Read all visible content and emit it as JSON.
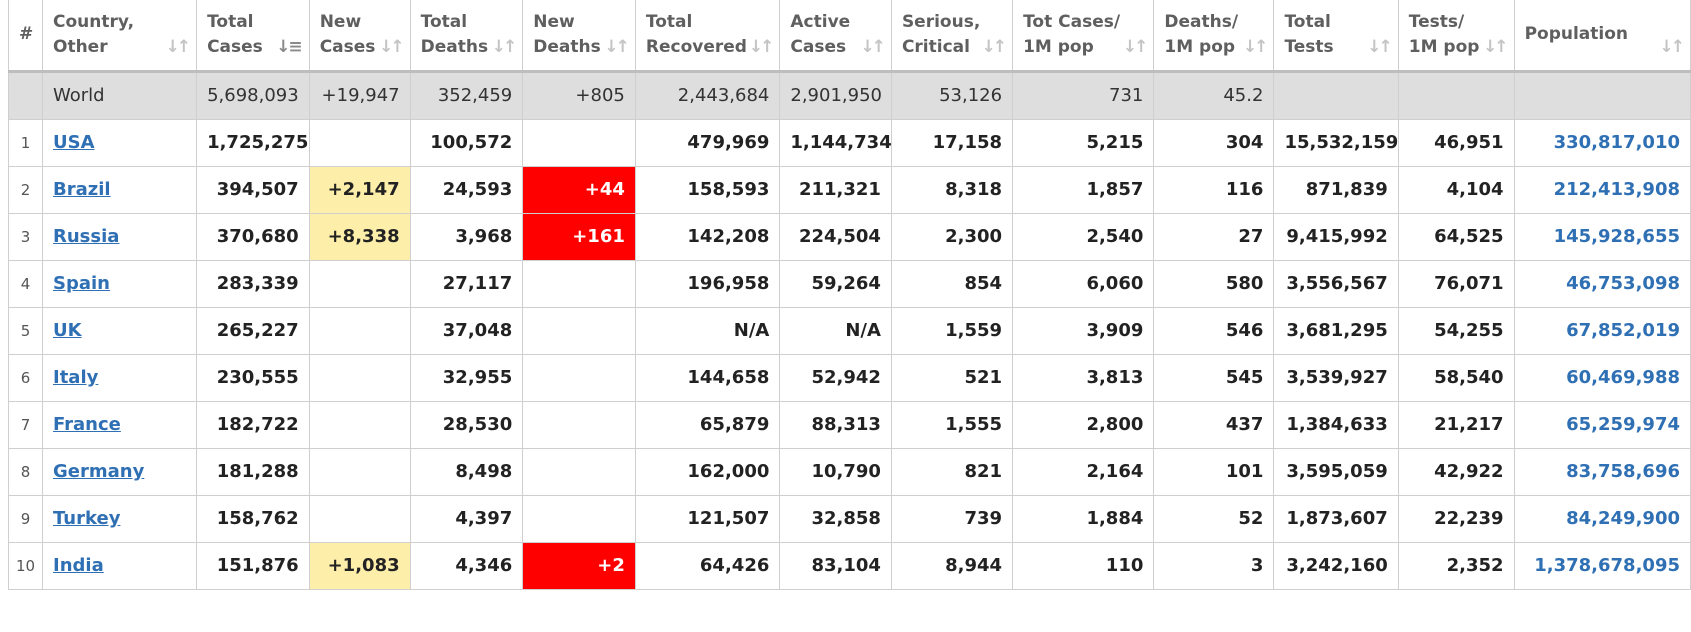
{
  "headers": {
    "rank": "#",
    "country": [
      "Country,",
      "Other"
    ],
    "total_cases": [
      "Total",
      "Cases"
    ],
    "new_cases": [
      "New",
      "Cases"
    ],
    "total_deaths": [
      "Total",
      "Deaths"
    ],
    "new_deaths": [
      "New",
      "Deaths"
    ],
    "total_recovered": [
      "Total",
      "Recovered"
    ],
    "active_cases": [
      "Active",
      "Cases"
    ],
    "serious_critical": [
      "Serious,",
      "Critical"
    ],
    "tot_cases_1m": [
      "Tot Cases/",
      "1M pop"
    ],
    "deaths_1m": [
      "Deaths/",
      "1M pop"
    ],
    "total_tests": [
      "Total",
      "Tests"
    ],
    "tests_1m": [
      "Tests/",
      "1M pop"
    ],
    "population": "Population"
  },
  "sort": {
    "column": "total_cases",
    "direction": "descending"
  },
  "colors": {
    "new_cases_highlight": "#fdeeaa",
    "new_deaths_highlight": "#ff0000",
    "world_row_bg": "#dedede",
    "link": "#2f6fb3"
  },
  "world": {
    "country": "World",
    "total_cases": "5,698,093",
    "new_cases": "+19,947",
    "total_deaths": "352,459",
    "new_deaths": "+805",
    "total_recovered": "2,443,684",
    "active_cases": "2,901,950",
    "serious_critical": "53,126",
    "tot_cases_1m": "731",
    "deaths_1m": "45.2",
    "total_tests": "",
    "tests_1m": "",
    "population": ""
  },
  "rows": [
    {
      "rank": "1",
      "country": "USA",
      "total_cases": "1,725,275",
      "new_cases": "",
      "total_deaths": "100,572",
      "new_deaths": "",
      "total_recovered": "479,969",
      "active_cases": "1,144,734",
      "serious_critical": "17,158",
      "tot_cases_1m": "5,215",
      "deaths_1m": "304",
      "total_tests": "15,532,159",
      "tests_1m": "46,951",
      "population": "330,817,010"
    },
    {
      "rank": "2",
      "country": "Brazil",
      "total_cases": "394,507",
      "new_cases": "+2,147",
      "total_deaths": "24,593",
      "new_deaths": "+44",
      "total_recovered": "158,593",
      "active_cases": "211,321",
      "serious_critical": "8,318",
      "tot_cases_1m": "1,857",
      "deaths_1m": "116",
      "total_tests": "871,839",
      "tests_1m": "4,104",
      "population": "212,413,908"
    },
    {
      "rank": "3",
      "country": "Russia",
      "total_cases": "370,680",
      "new_cases": "+8,338",
      "total_deaths": "3,968",
      "new_deaths": "+161",
      "total_recovered": "142,208",
      "active_cases": "224,504",
      "serious_critical": "2,300",
      "tot_cases_1m": "2,540",
      "deaths_1m": "27",
      "total_tests": "9,415,992",
      "tests_1m": "64,525",
      "population": "145,928,655"
    },
    {
      "rank": "4",
      "country": "Spain",
      "total_cases": "283,339",
      "new_cases": "",
      "total_deaths": "27,117",
      "new_deaths": "",
      "total_recovered": "196,958",
      "active_cases": "59,264",
      "serious_critical": "854",
      "tot_cases_1m": "6,060",
      "deaths_1m": "580",
      "total_tests": "3,556,567",
      "tests_1m": "76,071",
      "population": "46,753,098"
    },
    {
      "rank": "5",
      "country": "UK",
      "total_cases": "265,227",
      "new_cases": "",
      "total_deaths": "37,048",
      "new_deaths": "",
      "total_recovered": "N/A",
      "active_cases": "N/A",
      "serious_critical": "1,559",
      "tot_cases_1m": "3,909",
      "deaths_1m": "546",
      "total_tests": "3,681,295",
      "tests_1m": "54,255",
      "population": "67,852,019"
    },
    {
      "rank": "6",
      "country": "Italy",
      "total_cases": "230,555",
      "new_cases": "",
      "total_deaths": "32,955",
      "new_deaths": "",
      "total_recovered": "144,658",
      "active_cases": "52,942",
      "serious_critical": "521",
      "tot_cases_1m": "3,813",
      "deaths_1m": "545",
      "total_tests": "3,539,927",
      "tests_1m": "58,540",
      "population": "60,469,988"
    },
    {
      "rank": "7",
      "country": "France",
      "total_cases": "182,722",
      "new_cases": "",
      "total_deaths": "28,530",
      "new_deaths": "",
      "total_recovered": "65,879",
      "active_cases": "88,313",
      "serious_critical": "1,555",
      "tot_cases_1m": "2,800",
      "deaths_1m": "437",
      "total_tests": "1,384,633",
      "tests_1m": "21,217",
      "population": "65,259,974"
    },
    {
      "rank": "8",
      "country": "Germany",
      "total_cases": "181,288",
      "new_cases": "",
      "total_deaths": "8,498",
      "new_deaths": "",
      "total_recovered": "162,000",
      "active_cases": "10,790",
      "serious_critical": "821",
      "tot_cases_1m": "2,164",
      "deaths_1m": "101",
      "total_tests": "3,595,059",
      "tests_1m": "42,922",
      "population": "83,758,696"
    },
    {
      "rank": "9",
      "country": "Turkey",
      "total_cases": "158,762",
      "new_cases": "",
      "total_deaths": "4,397",
      "new_deaths": "",
      "total_recovered": "121,507",
      "active_cases": "32,858",
      "serious_critical": "739",
      "tot_cases_1m": "1,884",
      "deaths_1m": "52",
      "total_tests": "1,873,607",
      "tests_1m": "22,239",
      "population": "84,249,900"
    },
    {
      "rank": "10",
      "country": "India",
      "total_cases": "151,876",
      "new_cases": "+1,083",
      "total_deaths": "4,346",
      "new_deaths": "+2",
      "total_recovered": "64,426",
      "active_cases": "83,104",
      "serious_critical": "8,944",
      "tot_cases_1m": "110",
      "deaths_1m": "3",
      "total_tests": "3,242,160",
      "tests_1m": "2,352",
      "population": "1,378,678,095"
    }
  ]
}
